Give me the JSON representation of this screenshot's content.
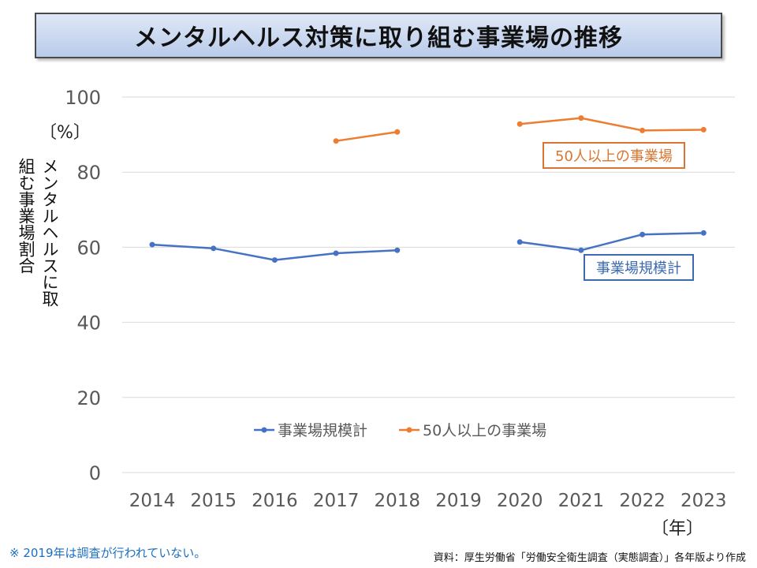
{
  "title": "メンタルヘルス対策に取り組む事業場の推移",
  "y_unit": "〔%〕",
  "y_title": "メンタルヘルスに取組む事業場割合",
  "x_unit": "〔年〕",
  "footnote": "※ 2019年は調査が行われていない。",
  "source": "資料：厚生労働省「労働安全衛生調査（実態調査）」各年版より作成",
  "callouts": {
    "orange": "50人以上の事業場",
    "blue": "事業場規模計"
  },
  "colors": {
    "series_all": "#4472c4",
    "series_50plus": "#ed7d31",
    "grid": "#d9d9d9",
    "axis_text": "#595959"
  },
  "chart_data": {
    "type": "line",
    "x": [
      "2014",
      "2015",
      "2016",
      "2017",
      "2018",
      "2019",
      "2020",
      "2021",
      "2022",
      "2023"
    ],
    "ylim": [
      0,
      100
    ],
    "yticks": [
      0,
      20,
      40,
      60,
      80,
      100
    ],
    "grid": true,
    "legend_position": "bottom-center",
    "series": [
      {
        "name": "事業場規模計",
        "values": [
          60.7,
          59.7,
          56.6,
          58.4,
          59.2,
          null,
          61.4,
          59.2,
          63.4,
          63.8
        ]
      },
      {
        "name": "50人以上の事業場",
        "values": [
          null,
          null,
          null,
          88.3,
          90.7,
          null,
          92.8,
          94.4,
          91.1,
          91.3
        ]
      }
    ]
  }
}
